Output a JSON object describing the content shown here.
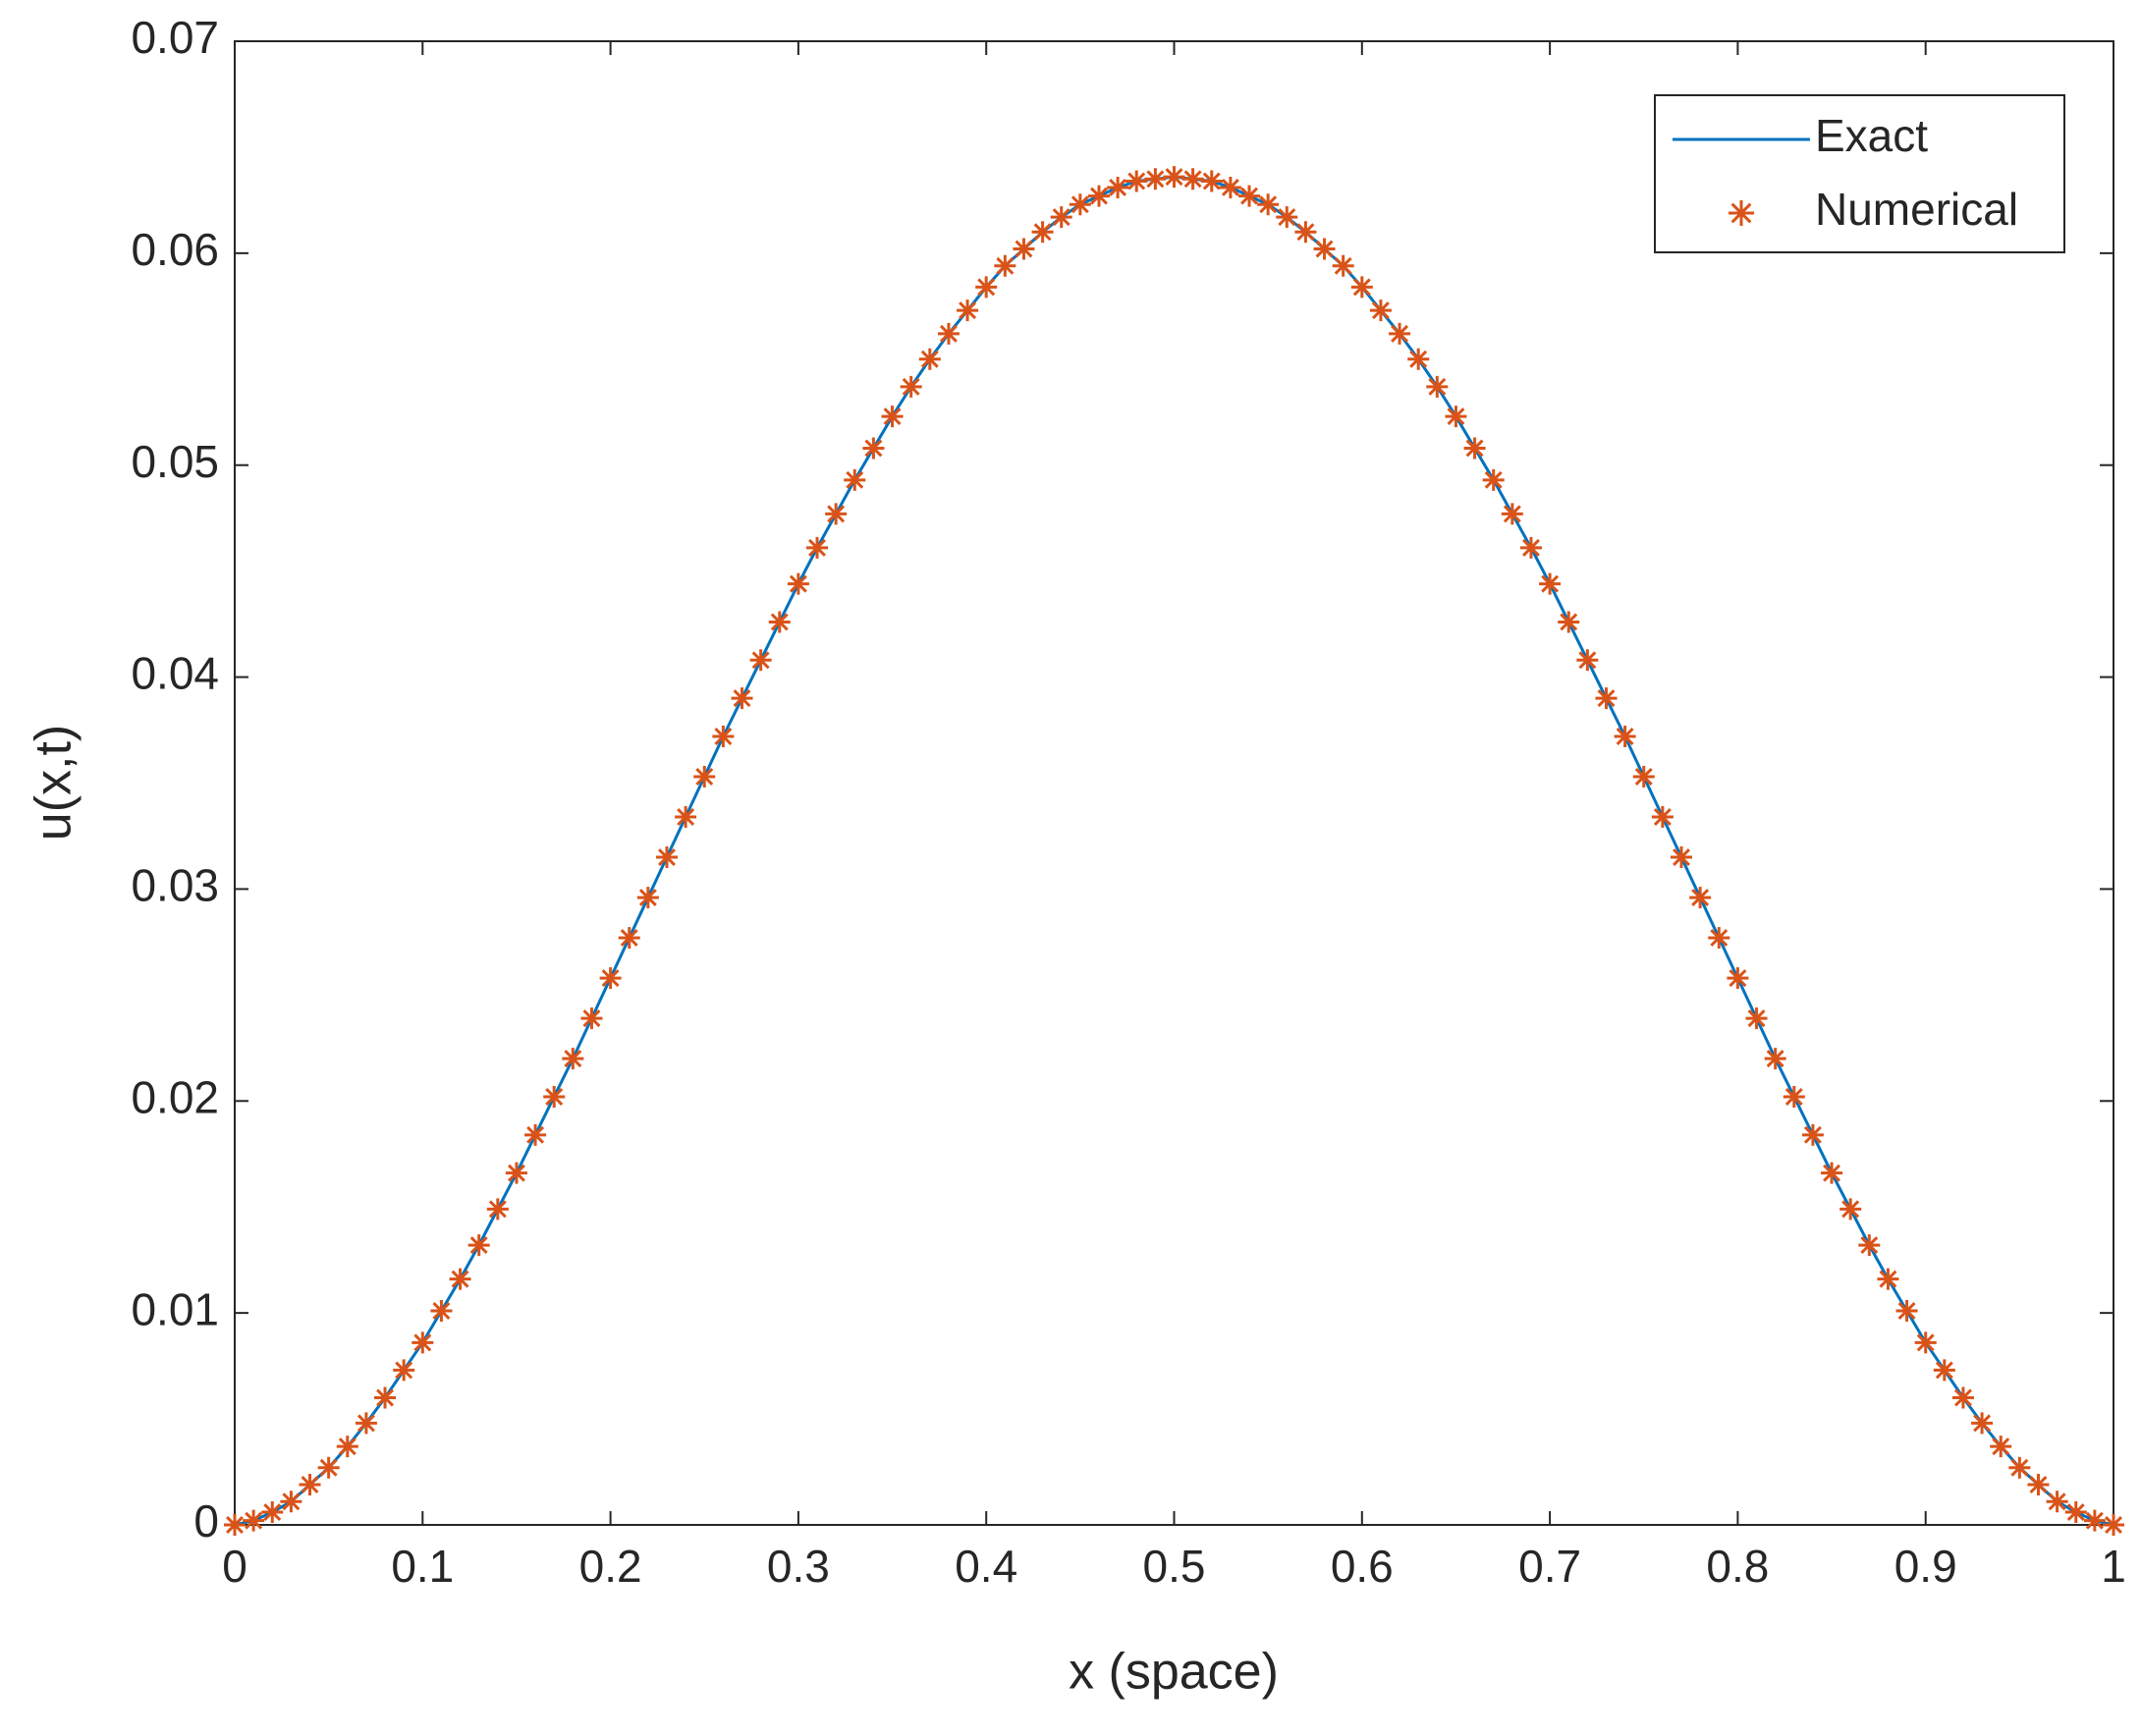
{
  "chart_data": {
    "type": "line",
    "xlabel": "x (space)",
    "ylabel": "u(x,t)",
    "x": [
      0,
      0.01,
      0.02,
      0.03,
      0.04,
      0.05,
      0.06,
      0.07,
      0.08,
      0.09,
      0.1,
      0.11,
      0.12,
      0.13,
      0.14,
      0.15,
      0.16,
      0.17,
      0.18,
      0.19,
      0.2,
      0.21,
      0.22,
      0.23,
      0.24,
      0.25,
      0.26,
      0.27,
      0.28,
      0.29,
      0.3,
      0.31,
      0.32,
      0.33,
      0.34,
      0.35,
      0.36,
      0.37,
      0.38,
      0.39,
      0.4,
      0.41,
      0.42,
      0.43,
      0.44,
      0.45,
      0.46,
      0.47,
      0.48,
      0.49,
      0.5,
      0.51,
      0.52,
      0.53,
      0.54,
      0.55,
      0.56,
      0.57,
      0.58,
      0.59,
      0.6,
      0.61,
      0.62,
      0.63,
      0.64,
      0.65,
      0.66,
      0.67,
      0.68,
      0.69,
      0.7,
      0.71,
      0.72,
      0.73,
      0.74,
      0.75,
      0.76,
      0.77,
      0.78,
      0.79,
      0.8,
      0.81,
      0.82,
      0.83,
      0.84,
      0.85,
      0.86,
      0.87,
      0.88,
      0.89,
      0.9,
      0.91,
      0.92,
      0.93,
      0.94,
      0.95,
      0.96,
      0.97,
      0.98,
      0.99,
      1
    ],
    "series": [
      {
        "name": "Exact",
        "color": "#0072bd",
        "style": "line",
        "values": [
          0,
          0.0002,
          0.0006,
          0.0011,
          0.0019,
          0.0027,
          0.0037,
          0.0048,
          0.006,
          0.0073,
          0.0086,
          0.0101,
          0.0116,
          0.0132,
          0.0149,
          0.0166,
          0.0184,
          0.0202,
          0.022,
          0.0239,
          0.0258,
          0.0277,
          0.0296,
          0.0315,
          0.0334,
          0.0353,
          0.0372,
          0.039,
          0.0408,
          0.0426,
          0.0444,
          0.0461,
          0.0477,
          0.0493,
          0.0508,
          0.0523,
          0.0537,
          0.055,
          0.0562,
          0.0573,
          0.0584,
          0.0594,
          0.0602,
          0.061,
          0.0617,
          0.0623,
          0.0627,
          0.0631,
          0.0634,
          0.0635,
          0.0636,
          0.0635,
          0.0634,
          0.0631,
          0.0627,
          0.0623,
          0.0617,
          0.061,
          0.0602,
          0.0594,
          0.0584,
          0.0573,
          0.0562,
          0.055,
          0.0537,
          0.0523,
          0.0508,
          0.0493,
          0.0477,
          0.0461,
          0.0444,
          0.0426,
          0.0408,
          0.039,
          0.0372,
          0.0353,
          0.0334,
          0.0315,
          0.0296,
          0.0277,
          0.0258,
          0.0239,
          0.022,
          0.0202,
          0.0184,
          0.0166,
          0.0149,
          0.0132,
          0.0116,
          0.0101,
          0.0086,
          0.0073,
          0.006,
          0.0048,
          0.0037,
          0.0027,
          0.0019,
          0.0011,
          0.0006,
          0.0002,
          0
        ]
      },
      {
        "name": "Numerical",
        "color": "#d95319",
        "style": "asterisk",
        "values": [
          0,
          0.0002,
          0.0006,
          0.0011,
          0.0019,
          0.0027,
          0.0037,
          0.0048,
          0.006,
          0.0073,
          0.0086,
          0.0101,
          0.0116,
          0.0132,
          0.0149,
          0.0166,
          0.0184,
          0.0202,
          0.022,
          0.0239,
          0.0258,
          0.0277,
          0.0296,
          0.0315,
          0.0334,
          0.0353,
          0.0372,
          0.039,
          0.0408,
          0.0426,
          0.0444,
          0.0461,
          0.0477,
          0.0493,
          0.0508,
          0.0523,
          0.0537,
          0.055,
          0.0562,
          0.0573,
          0.0584,
          0.0594,
          0.0602,
          0.061,
          0.0617,
          0.0623,
          0.0627,
          0.0631,
          0.0634,
          0.0635,
          0.0636,
          0.0635,
          0.0634,
          0.0631,
          0.0627,
          0.0623,
          0.0617,
          0.061,
          0.0602,
          0.0594,
          0.0584,
          0.0573,
          0.0562,
          0.055,
          0.0537,
          0.0523,
          0.0508,
          0.0493,
          0.0477,
          0.0461,
          0.0444,
          0.0426,
          0.0408,
          0.039,
          0.0372,
          0.0353,
          0.0334,
          0.0315,
          0.0296,
          0.0277,
          0.0258,
          0.0239,
          0.022,
          0.0202,
          0.0184,
          0.0166,
          0.0149,
          0.0132,
          0.0116,
          0.0101,
          0.0086,
          0.0073,
          0.006,
          0.0048,
          0.0037,
          0.0027,
          0.0019,
          0.0011,
          0.0006,
          0.0002,
          0
        ]
      }
    ],
    "xlim": [
      0,
      1
    ],
    "xticks": [
      0,
      0.1,
      0.2,
      0.3,
      0.4,
      0.5,
      0.6,
      0.7,
      0.8,
      0.9,
      1
    ],
    "ylim": [
      0,
      0.07
    ],
    "yticks": [
      0,
      0.01,
      0.02,
      0.03,
      0.04,
      0.05,
      0.06,
      0.07
    ],
    "grid": false,
    "legend": "top-right"
  }
}
